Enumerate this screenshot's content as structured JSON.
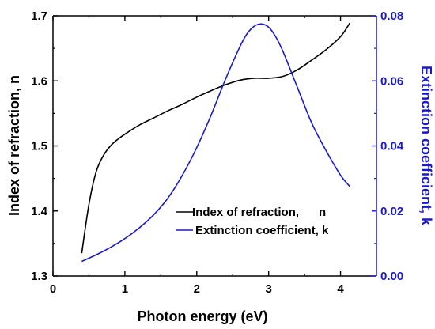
{
  "chart_data": {
    "type": "line",
    "title": "",
    "xlabel": "Photon energy (eV)",
    "ylabel_left": "Index of refraction, n",
    "ylabel_right": "Extinction coefficient, k",
    "xlim": [
      0,
      4.5
    ],
    "ylim_left": [
      1.3,
      1.7
    ],
    "ylim_right": [
      0,
      0.08
    ],
    "x_ticks": [
      "0",
      "1",
      "2",
      "3",
      "4"
    ],
    "y_left_ticks": [
      "1.3",
      "1.4",
      "1.5",
      "1.6",
      "1.7"
    ],
    "y_right_ticks": [
      "0.00",
      "0.02",
      "0.04",
      "0.06",
      "0.08"
    ],
    "grid": false,
    "legend_position": "lower-right",
    "colors": {
      "n": "#000000",
      "k": "#1a1acc",
      "right_axis": "#1a1acc"
    },
    "series": [
      {
        "name": "Index of refraction,      n",
        "axis": "left",
        "x": [
          0.4,
          0.5,
          0.6,
          0.7,
          0.8,
          0.9,
          1.0,
          1.2,
          1.4,
          1.6,
          1.8,
          2.0,
          2.2,
          2.4,
          2.6,
          2.8,
          3.0,
          3.2,
          3.4,
          3.6,
          3.8,
          4.0,
          4.13
        ],
        "values": [
          1.335,
          1.41,
          1.46,
          1.485,
          1.5,
          1.51,
          1.518,
          1.532,
          1.543,
          1.554,
          1.564,
          1.575,
          1.585,
          1.594,
          1.601,
          1.604,
          1.604,
          1.607,
          1.617,
          1.632,
          1.648,
          1.668,
          1.689
        ]
      },
      {
        "name": "Extinction coefficient, k",
        "axis": "right",
        "x": [
          0.4,
          0.6,
          0.8,
          1.0,
          1.2,
          1.4,
          1.6,
          1.8,
          2.0,
          2.2,
          2.4,
          2.6,
          2.7,
          2.8,
          2.9,
          3.0,
          3.1,
          3.2,
          3.4,
          3.6,
          3.8,
          4.0,
          4.13
        ],
        "values": [
          0.0045,
          0.0065,
          0.0088,
          0.0115,
          0.0148,
          0.0188,
          0.024,
          0.031,
          0.0395,
          0.0495,
          0.0605,
          0.0705,
          0.0745,
          0.0768,
          0.0775,
          0.0765,
          0.0735,
          0.069,
          0.058,
          0.047,
          0.0385,
          0.031,
          0.0275
        ]
      }
    ]
  }
}
